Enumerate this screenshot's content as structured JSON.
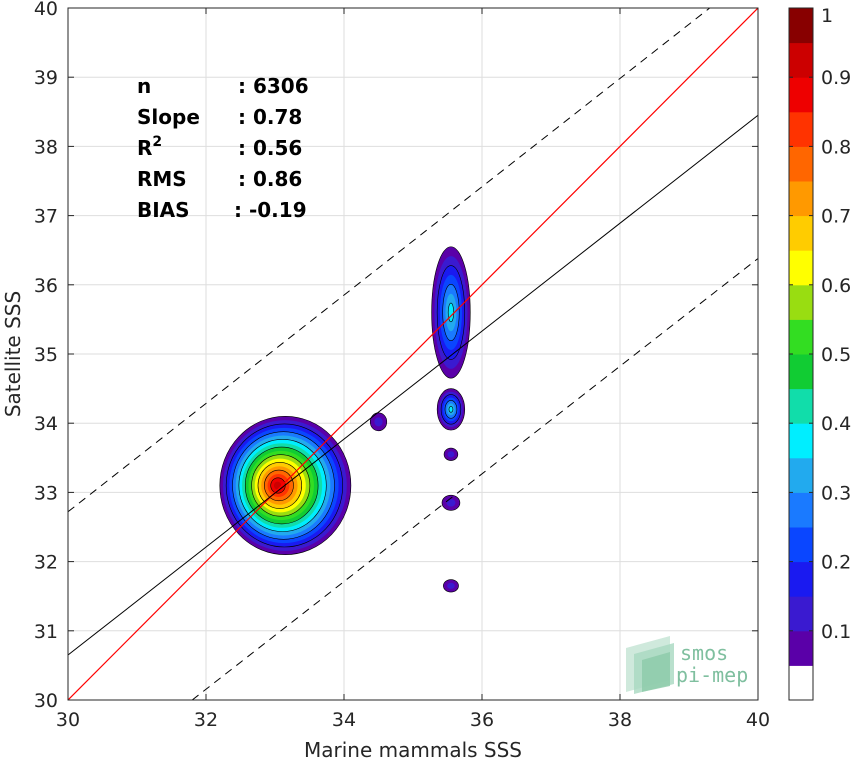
{
  "chart_data": {
    "type": "scatter",
    "subtype": "density-contour",
    "xlabel": "Marine mammals SSS",
    "ylabel": "Satellite SSS",
    "xlim": [
      30,
      40
    ],
    "ylim": [
      30,
      40
    ],
    "xticks": [
      "30",
      "32",
      "34",
      "36",
      "38",
      "40"
    ],
    "yticks": [
      "30",
      "31",
      "32",
      "33",
      "34",
      "35",
      "36",
      "37",
      "38",
      "39",
      "40"
    ],
    "grid": true,
    "stats": [
      {
        "label": "n",
        "value": ": 6306"
      },
      {
        "label": "Slope",
        "value": ": 0.78"
      },
      {
        "label": "R",
        "sup": "2",
        "value": ": 0.56"
      },
      {
        "label": "RMS",
        "value": ": 0.86"
      },
      {
        "label": "BIAS",
        "value": ": -0.19"
      }
    ],
    "identity_line": {
      "color": "#ff0000",
      "slope": 1,
      "intercept": 0
    },
    "regression_line": {
      "color": "#000000",
      "points": [
        [
          30,
          30.65
        ],
        [
          40,
          38.45
        ]
      ]
    },
    "error_bands": [
      {
        "style": "dashed",
        "points": [
          [
            30,
            32.72
          ],
          [
            39.3,
            40
          ]
        ]
      },
      {
        "style": "dashed",
        "points": [
          [
            31.8,
            30
          ],
          [
            40,
            36.38
          ]
        ]
      }
    ],
    "density_clusters": [
      {
        "cx": 33.15,
        "cy": 33.1,
        "rx": 0.95,
        "ry": 1.0,
        "peak": 0.95
      },
      {
        "cx": 35.55,
        "cy": 35.6,
        "rx": 0.28,
        "ry": 0.95,
        "peak": 0.36
      },
      {
        "cx": 35.55,
        "cy": 34.2,
        "rx": 0.2,
        "ry": 0.3,
        "peak": 0.38
      },
      {
        "cx": 34.5,
        "cy": 34.02,
        "rx": 0.12,
        "ry": 0.13,
        "peak": 0.1
      },
      {
        "cx": 35.55,
        "cy": 33.55,
        "rx": 0.1,
        "ry": 0.09,
        "peak": 0.1
      },
      {
        "cx": 35.55,
        "cy": 32.85,
        "rx": 0.13,
        "ry": 0.11,
        "peak": 0.12
      },
      {
        "cx": 35.55,
        "cy": 31.65,
        "rx": 0.11,
        "ry": 0.09,
        "peak": 0.1
      }
    ],
    "colorbar": {
      "range": [
        0,
        1
      ],
      "ticks": [
        "0.1",
        "0.2",
        "0.3",
        "0.4",
        "0.5",
        "0.6",
        "0.7",
        "0.8",
        "0.9",
        "1"
      ],
      "colors": [
        "#ffffff",
        "#5a00a8",
        "#3a1ad0",
        "#1a1af0",
        "#0a46ff",
        "#1a7aff",
        "#22aaee",
        "#00eeff",
        "#11ddaa",
        "#11cc33",
        "#33dd22",
        "#99dd11",
        "#ffff00",
        "#ffcc00",
        "#ff9900",
        "#ff6600",
        "#ff3300",
        "#ee0000",
        "#cc0000",
        "#880000"
      ]
    },
    "logo_text": [
      "smos",
      "pi-mep"
    ]
  }
}
